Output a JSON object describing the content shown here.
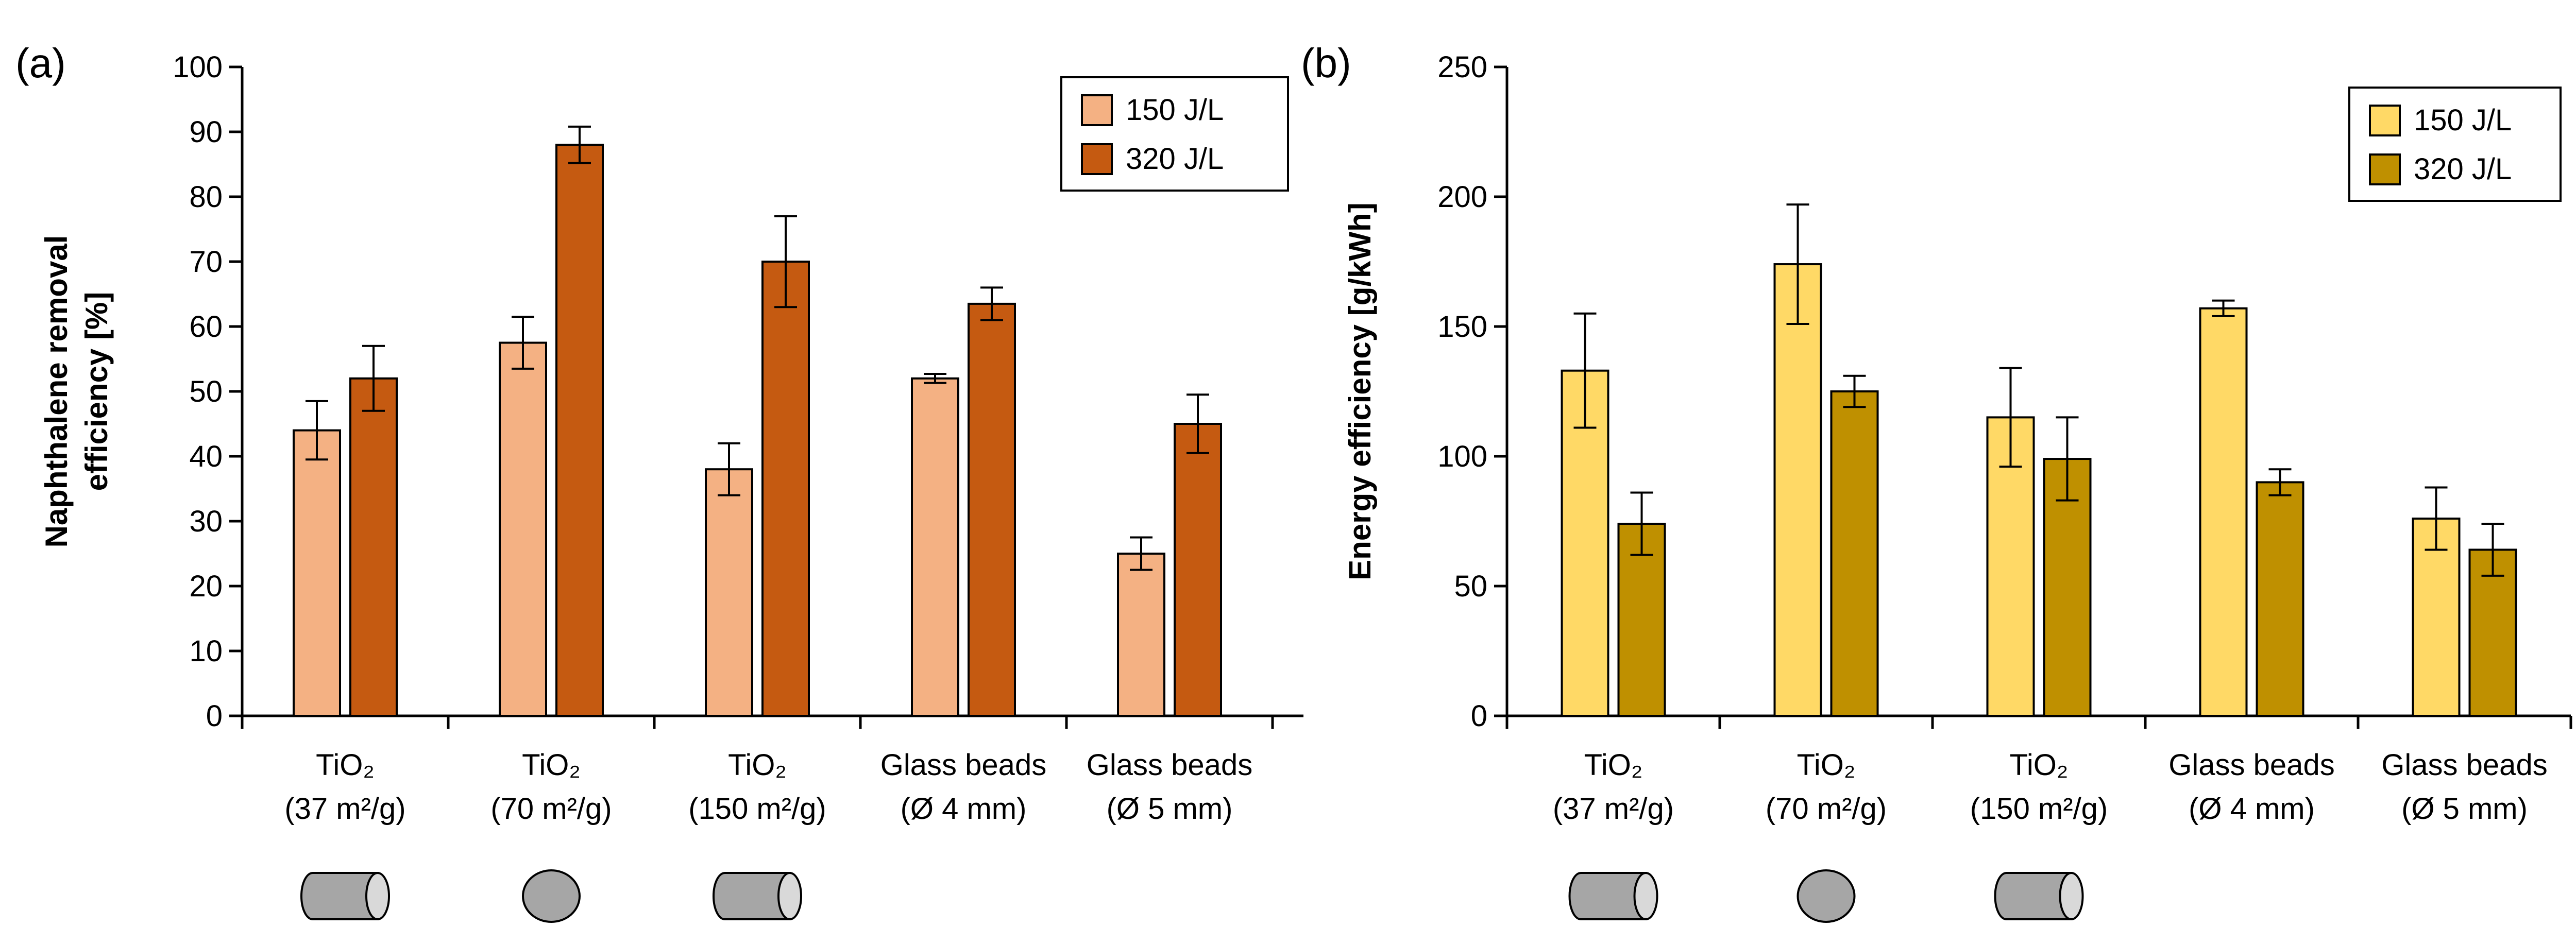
{
  "colors": {
    "a_150": "#f4b183",
    "a_320": "#c55a11",
    "b_150": "#ffd966",
    "b_320": "#bf9000",
    "shape_fill": "#a6a6a6",
    "shape_end": "#d9d9d9"
  },
  "shape_icons": [
    "cylinder-pellet-icon",
    "sphere-pellet-icon",
    "cylinder-pellet-icon"
  ],
  "chart_data": [
    {
      "type": "bar",
      "panel_label": "(a)",
      "ylabel_lines": [
        "Naphthalene removal",
        "efficiency [%]"
      ],
      "xlabel": "",
      "ylim": [
        0,
        100
      ],
      "yticks": [
        "0",
        "10",
        "20",
        "30",
        "40",
        "50",
        "60",
        "70",
        "80",
        "90",
        "100"
      ],
      "grid": false,
      "legend_position": "top-right",
      "categories": [
        {
          "line1": "TiO₂",
          "line2": "(37 m²/g)"
        },
        {
          "line1": "TiO₂",
          "line2": "(70 m²/g)"
        },
        {
          "line1": "TiO₂",
          "line2": "(150 m²/g)"
        },
        {
          "line1": "Glass beads",
          "line2": "(Ø 4 mm)"
        },
        {
          "line1": "Glass beads",
          "line2": "(Ø 5 mm)"
        }
      ],
      "series": [
        {
          "name": "150 J/L",
          "color": "#f4b183",
          "values": [
            44,
            57.5,
            38,
            52,
            25
          ],
          "errors": [
            4.5,
            4,
            4,
            0.7,
            2.5
          ]
        },
        {
          "name": "320 J/L",
          "color": "#c55a11",
          "values": [
            52,
            88,
            70,
            63.5,
            45
          ],
          "errors": [
            5,
            2.8,
            7,
            2.5,
            4.5
          ]
        }
      ]
    },
    {
      "type": "bar",
      "panel_label": "(b)",
      "ylabel_lines": [
        "Energy efficiency [g/kWh]"
      ],
      "xlabel": "",
      "ylim": [
        0,
        250
      ],
      "yticks": [
        "0",
        "50",
        "100",
        "150",
        "200",
        "250"
      ],
      "grid": false,
      "legend_position": "top-right",
      "categories": [
        {
          "line1": "TiO₂",
          "line2": "(37 m²/g)"
        },
        {
          "line1": "TiO₂",
          "line2": "(70 m²/g)"
        },
        {
          "line1": "TiO₂",
          "line2": "(150 m²/g)"
        },
        {
          "line1": "Glass beads",
          "line2": "(Ø 4 mm)"
        },
        {
          "line1": "Glass beads",
          "line2": "(Ø 5 mm)"
        }
      ],
      "series": [
        {
          "name": "150 J/L",
          "color": "#ffd966",
          "values": [
            133,
            174,
            115,
            157,
            76
          ],
          "errors": [
            22,
            23,
            19,
            3,
            12
          ]
        },
        {
          "name": "320 J/L",
          "color": "#bf9000",
          "values": [
            74,
            125,
            99,
            90,
            64
          ],
          "errors": [
            12,
            6,
            16,
            5,
            10
          ]
        }
      ]
    }
  ]
}
